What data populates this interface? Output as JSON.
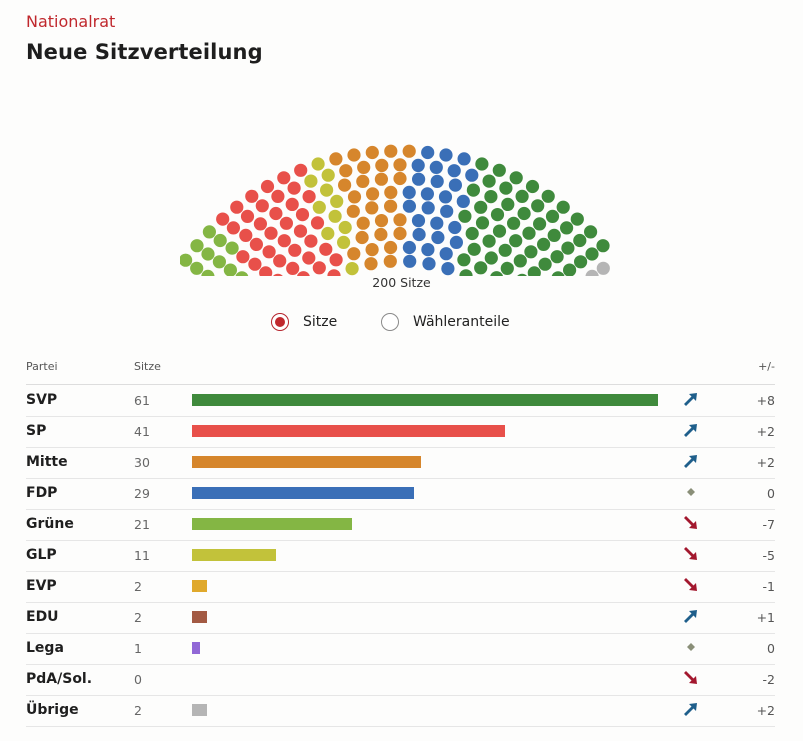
{
  "kicker": "Nationalrat",
  "title": "Neue Sitzverteilung",
  "total_label": "200 Sitze",
  "toggle": {
    "option1": "Sitze",
    "option2": "Wähleranteile",
    "selected": "Sitze"
  },
  "table_headers": {
    "party": "Partei",
    "seats": "Sitze",
    "change": "+/-"
  },
  "colors": {
    "SVP": "#3f8a3c",
    "SP": "#e8504a",
    "Mitte": "#d6862c",
    "FDP": "#3a6fb7",
    "Grüne": "#84b644",
    "GLP": "#c2c23a",
    "EVP": "#e0a92c",
    "EDU": "#a35a43",
    "Lega": "#9168d6",
    "PdA/Sol.": "#8a1f2e",
    "Übrige": "#b5b5b5",
    "arrow_up": "#1f5f8b",
    "arrow_down": "#a3182e",
    "neutral": "#8a8f78"
  },
  "chart_data": {
    "type": "bar",
    "categories": [
      "SVP",
      "SP",
      "Mitte",
      "FDP",
      "Grüne",
      "GLP",
      "EVP",
      "EDU",
      "Lega",
      "PdA/Sol.",
      "Übrige"
    ],
    "values": [
      61,
      41,
      30,
      29,
      21,
      11,
      2,
      2,
      1,
      0,
      2
    ],
    "change": [
      "+8",
      "+2",
      "+2",
      "0",
      "-7",
      "-5",
      "-1",
      "+1",
      "0",
      "-2",
      "+2"
    ],
    "trend": [
      "up",
      "up",
      "up",
      "neutral",
      "down",
      "down",
      "down",
      "up",
      "neutral",
      "down",
      "up"
    ],
    "total": 200,
    "parliament_order": [
      "Grüne",
      "SP",
      "GLP",
      "Mitte",
      "FDP",
      "SVP",
      "EDU",
      "Lega",
      "Übrige"
    ]
  }
}
